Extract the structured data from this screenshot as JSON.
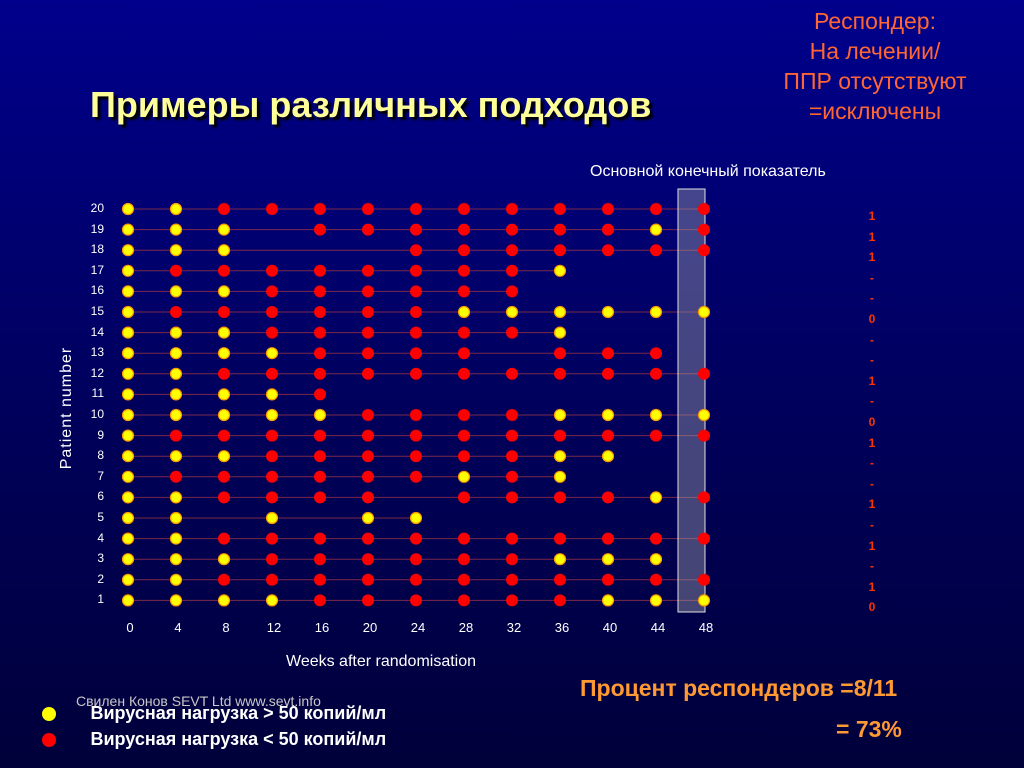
{
  "slide": {
    "title": "Примеры различных подходов",
    "responder_lines": [
      "Респондер:",
      "На лечении/",
      "ППР отсутствуют",
      "=исключены"
    ],
    "endpoint_label": "Основной конечный показатель",
    "footer": "Свилен Конов SEVT Ltd  www.sevt.info",
    "legend": [
      {
        "label": "Вирусная нагрузка > 50 копий/мл",
        "color": "#ffff00"
      },
      {
        "label": "Вирусная нагрузка < 50 копий/мл",
        "color": "#ff0000"
      }
    ],
    "percent_line": "Процент респондеров   =8/11",
    "percent_value": "= 73%",
    "responder_codes": [
      "1",
      "1",
      "1",
      "-",
      "-",
      "0",
      "-",
      "-",
      "1",
      "-",
      "0",
      "1",
      "-",
      "-",
      "1",
      "-",
      "1",
      "-",
      "1",
      "0"
    ]
  },
  "chart_data": {
    "type": "scatter",
    "xlabel": "Weeks after randomisation",
    "ylabel": "Patient number",
    "x_ticks": [
      0,
      4,
      8,
      12,
      16,
      20,
      24,
      28,
      32,
      36,
      40,
      44,
      48
    ],
    "y_ticks": [
      1,
      2,
      3,
      4,
      5,
      6,
      7,
      8,
      9,
      10,
      11,
      12,
      13,
      14,
      15,
      16,
      17,
      18,
      19,
      20
    ],
    "xlim": [
      0,
      48
    ],
    "ylim": [
      1,
      20
    ],
    "highlight_week": 48,
    "legend_map": {
      "Y": "Вирусная нагрузка > 50 копий/мл",
      "R": "Вирусная нагрузка < 50 копий/мл"
    },
    "colors": {
      "Y": "#ffff00",
      "R": "#ff0000"
    },
    "patients": [
      {
        "id": 20,
        "values": [
          "Y",
          "Y",
          "R",
          "R",
          "R",
          "R",
          "R",
          "R",
          "R",
          "R",
          "R",
          "R",
          "R"
        ]
      },
      {
        "id": 19,
        "values": [
          "Y",
          "Y",
          "Y",
          "",
          "R",
          "R",
          "R",
          "R",
          "R",
          "R",
          "R",
          "Y",
          "R"
        ]
      },
      {
        "id": 18,
        "values": [
          "Y",
          "Y",
          "Y",
          "",
          "",
          "",
          "R",
          "R",
          "R",
          "R",
          "R",
          "R",
          "R"
        ]
      },
      {
        "id": 17,
        "values": [
          "Y",
          "R",
          "R",
          "R",
          "R",
          "R",
          "R",
          "R",
          "R",
          "Y",
          "",
          "",
          ""
        ]
      },
      {
        "id": 16,
        "values": [
          "Y",
          "Y",
          "Y",
          "R",
          "R",
          "R",
          "R",
          "R",
          "R",
          "",
          "",
          "",
          ""
        ]
      },
      {
        "id": 15,
        "values": [
          "Y",
          "R",
          "R",
          "R",
          "R",
          "R",
          "R",
          "Y",
          "Y",
          "Y",
          "Y",
          "Y",
          "Y"
        ]
      },
      {
        "id": 14,
        "values": [
          "Y",
          "Y",
          "Y",
          "R",
          "R",
          "R",
          "R",
          "R",
          "R",
          "Y",
          "",
          "",
          ""
        ]
      },
      {
        "id": 13,
        "values": [
          "Y",
          "Y",
          "Y",
          "Y",
          "R",
          "R",
          "R",
          "R",
          "",
          "R",
          "R",
          "R",
          ""
        ]
      },
      {
        "id": 12,
        "values": [
          "Y",
          "Y",
          "R",
          "R",
          "R",
          "R",
          "R",
          "R",
          "R",
          "R",
          "R",
          "R",
          "R"
        ]
      },
      {
        "id": 11,
        "values": [
          "Y",
          "Y",
          "Y",
          "Y",
          "R",
          "",
          "",
          "",
          "",
          "",
          "",
          "",
          ""
        ]
      },
      {
        "id": 10,
        "values": [
          "Y",
          "Y",
          "Y",
          "Y",
          "Y",
          "R",
          "R",
          "R",
          "R",
          "Y",
          "Y",
          "Y",
          "Y"
        ]
      },
      {
        "id": 9,
        "values": [
          "Y",
          "R",
          "R",
          "R",
          "R",
          "R",
          "R",
          "R",
          "R",
          "R",
          "R",
          "R",
          "R"
        ]
      },
      {
        "id": 8,
        "values": [
          "Y",
          "Y",
          "Y",
          "R",
          "R",
          "R",
          "R",
          "R",
          "R",
          "Y",
          "Y",
          "",
          ""
        ]
      },
      {
        "id": 7,
        "values": [
          "Y",
          "R",
          "R",
          "R",
          "R",
          "R",
          "R",
          "Y",
          "R",
          "Y",
          "",
          "",
          ""
        ]
      },
      {
        "id": 6,
        "values": [
          "Y",
          "Y",
          "R",
          "R",
          "R",
          "R",
          "",
          "R",
          "R",
          "R",
          "R",
          "Y",
          "R"
        ]
      },
      {
        "id": 5,
        "values": [
          "Y",
          "Y",
          "",
          "Y",
          "",
          "Y",
          "Y",
          "",
          "",
          "",
          "",
          "",
          ""
        ]
      },
      {
        "id": 4,
        "values": [
          "Y",
          "Y",
          "R",
          "R",
          "R",
          "R",
          "R",
          "R",
          "R",
          "R",
          "R",
          "R",
          "R"
        ]
      },
      {
        "id": 3,
        "values": [
          "Y",
          "Y",
          "Y",
          "R",
          "R",
          "R",
          "R",
          "R",
          "R",
          "Y",
          "Y",
          "Y",
          ""
        ]
      },
      {
        "id": 2,
        "values": [
          "Y",
          "Y",
          "R",
          "R",
          "R",
          "R",
          "R",
          "R",
          "R",
          "R",
          "R",
          "R",
          "R"
        ]
      },
      {
        "id": 1,
        "values": [
          "Y",
          "Y",
          "Y",
          "Y",
          "R",
          "R",
          "R",
          "R",
          "R",
          "R",
          "Y",
          "Y",
          "Y"
        ]
      }
    ]
  }
}
